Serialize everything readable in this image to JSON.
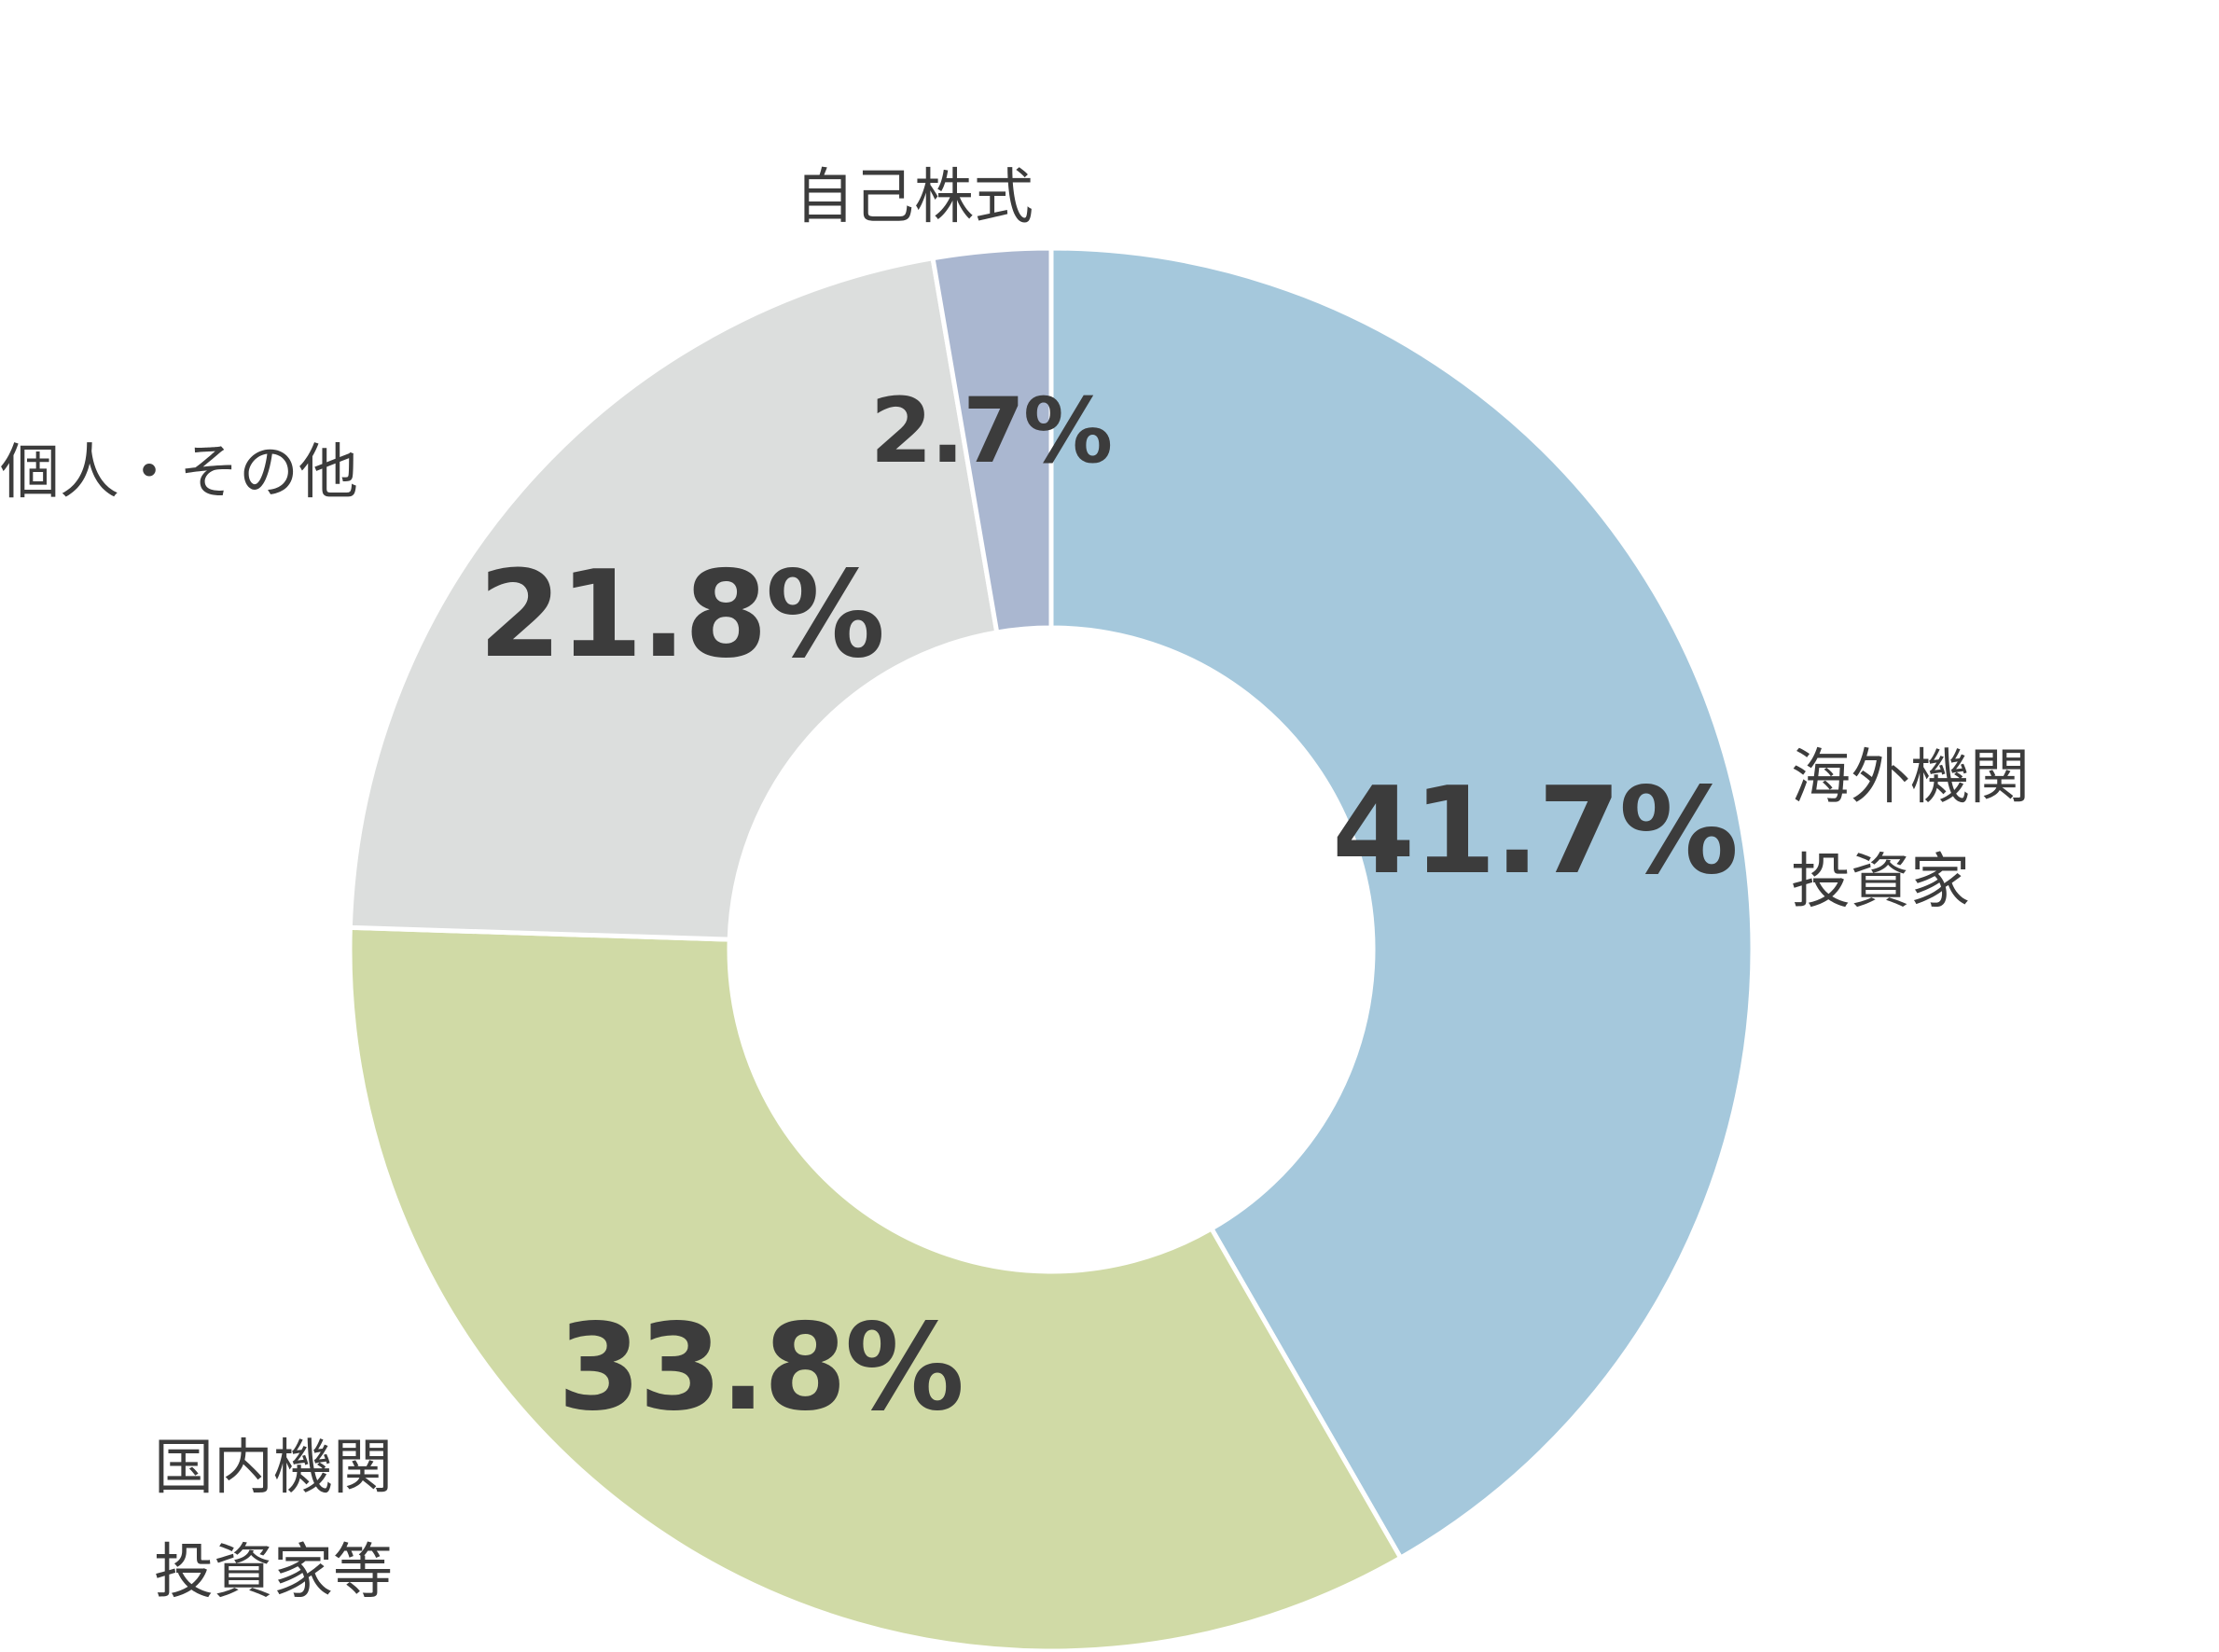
{
  "chart_data": {
    "type": "pie",
    "donut": true,
    "title": "",
    "categories": [
      "海外機関投資家",
      "国内機関投資家等",
      "個人・その他",
      "自己株式"
    ],
    "values": [
      41.7,
      33.8,
      21.8,
      2.7
    ],
    "unit": "%",
    "slices": [
      {
        "label_lines": [
          "海外機関",
          "投資家"
        ],
        "value": 41.7,
        "display": "41.7%",
        "color": "#a5c8dc"
      },
      {
        "label_lines": [
          "国内機関",
          "投資家等"
        ],
        "value": 33.8,
        "display": "33.8%",
        "color": "#d0daa6"
      },
      {
        "label_lines": [
          "個人・その他"
        ],
        "value": 21.8,
        "display": "21.8%",
        "color": "#dcdedd"
      },
      {
        "label_lines": [
          "自己株式"
        ],
        "value": 2.7,
        "display": "2.7%",
        "color": "#aab7d0"
      }
    ],
    "legend": "none",
    "start_angle": "12 o'clock",
    "direction": "clockwise"
  }
}
